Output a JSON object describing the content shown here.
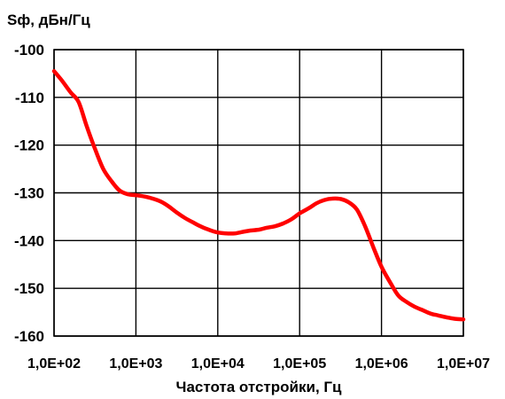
{
  "chart_data": {
    "type": "line",
    "ylabel": "Sф, дБн/Гц",
    "xlabel": "Частота отстройки, Гц",
    "x_scale": "log",
    "xlim": [
      100,
      10000000
    ],
    "ylim": [
      -160,
      -100
    ],
    "grid": true,
    "x_ticks": [
      {
        "value": 100,
        "label": "1,0E+02"
      },
      {
        "value": 1000,
        "label": "1,0E+03"
      },
      {
        "value": 10000,
        "label": "1,0E+04"
      },
      {
        "value": 100000,
        "label": "1,0E+05"
      },
      {
        "value": 1000000,
        "label": "1,0E+06"
      },
      {
        "value": 10000000,
        "label": "1,0E+07"
      }
    ],
    "y_ticks": [
      {
        "value": -100,
        "label": "-100"
      },
      {
        "value": -110,
        "label": "-110"
      },
      {
        "value": -120,
        "label": "-120"
      },
      {
        "value": -130,
        "label": "-130"
      },
      {
        "value": -140,
        "label": "-140"
      },
      {
        "value": -150,
        "label": "-150"
      },
      {
        "value": -160,
        "label": "-160"
      }
    ],
    "series": [
      {
        "color": "#ff0000",
        "x": [
          100,
          125,
          160,
          200,
          250,
          320,
          400,
          500,
          630,
          800,
          1000,
          1300,
          1600,
          2000,
          2500,
          3200,
          4000,
          5000,
          6300,
          8000,
          10000,
          13000,
          16000,
          20000,
          25000,
          32000,
          40000,
          50000,
          63000,
          80000,
          100000,
          130000,
          160000,
          200000,
          250000,
          320000,
          400000,
          500000,
          630000,
          800000,
          1000000,
          1300000,
          1600000,
          2000000,
          2500000,
          3200000,
          4000000,
          5000000,
          6300000,
          8000000,
          10000000
        ],
        "y": [
          -104.5,
          -106.5,
          -109.0,
          -111.0,
          -116.0,
          -121.0,
          -125.0,
          -127.5,
          -129.5,
          -130.3,
          -130.5,
          -130.8,
          -131.2,
          -131.8,
          -132.8,
          -134.2,
          -135.3,
          -136.2,
          -137.1,
          -137.8,
          -138.3,
          -138.5,
          -138.5,
          -138.2,
          -137.9,
          -137.7,
          -137.3,
          -137.0,
          -136.4,
          -135.5,
          -134.3,
          -133.2,
          -132.2,
          -131.5,
          -131.2,
          -131.3,
          -132.0,
          -133.5,
          -137.0,
          -141.5,
          -145.5,
          -149.0,
          -151.5,
          -152.8,
          -153.8,
          -154.6,
          -155.3,
          -155.7,
          -156.1,
          -156.4,
          -156.5
        ]
      }
    ]
  }
}
